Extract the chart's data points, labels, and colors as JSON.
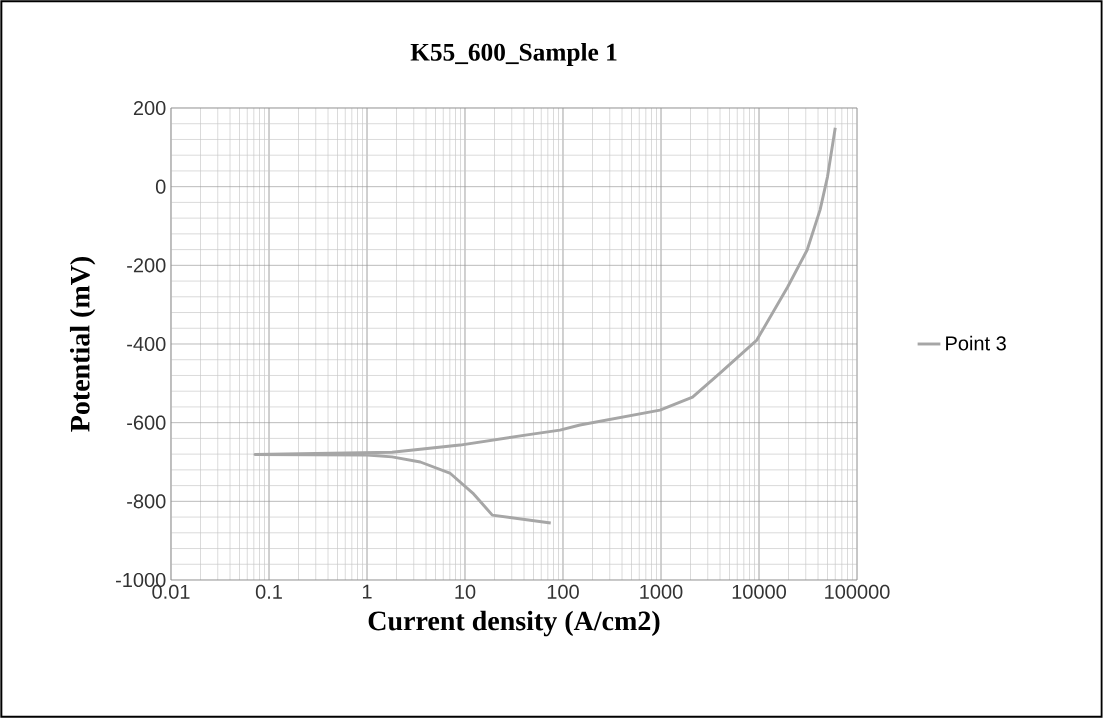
{
  "chart_data": {
    "type": "line",
    "title": "K55_600_Sample 1",
    "xlabel": "Current density (A/cm2)",
    "ylabel": "Potential (mV)",
    "log": "x",
    "grid": true,
    "legend": "right",
    "marker": "none",
    "line_style": "solid",
    "xlim": [
      0.01,
      100000
    ],
    "ylim": [
      -1000,
      200
    ],
    "xticks": [
      0.01,
      0.1,
      1,
      10,
      100,
      1000,
      10000,
      100000
    ],
    "yticks": [
      -1000,
      -800,
      -600,
      -400,
      -200,
      0,
      200
    ],
    "series": [
      {
        "name": "Point 3",
        "color": "#a6a6a6",
        "x": [
          75,
          19,
          12,
          7,
          3.5,
          1.8,
          1.0,
          0.072,
          1.8,
          8.9,
          43,
          93,
          149,
          977,
          2100,
          4000,
          9500,
          19600,
          31000,
          42000,
          50000,
          60000
        ],
        "values": [
          -855,
          -835,
          -779,
          -728,
          -700,
          -687,
          -682,
          -681,
          -675,
          -657,
          -631,
          -619,
          -606,
          -568,
          -535,
          -474,
          -390,
          -255,
          -161,
          -59,
          25,
          150
        ]
      }
    ]
  }
}
